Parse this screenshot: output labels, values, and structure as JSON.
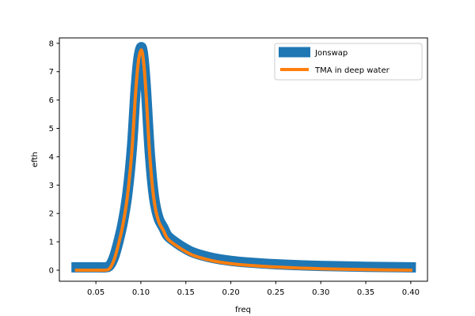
{
  "chart_data": {
    "type": "line",
    "title": "",
    "xlabel": "freq",
    "ylabel": "efth",
    "xlim": [
      0.0094,
      0.4186
    ],
    "ylim": [
      -0.39,
      8.19
    ],
    "xticks": [
      "0.05",
      "0.10",
      "0.15",
      "0.20",
      "0.25",
      "0.30",
      "0.35",
      "0.40"
    ],
    "yticks": [
      "0",
      "1",
      "2",
      "3",
      "4",
      "5",
      "6",
      "7",
      "8"
    ],
    "grid": false,
    "legend_position": "top-right",
    "series": [
      {
        "name": "Jonswap",
        "color": "#1f77b4",
        "x": [
          0.0285,
          0.05,
          0.055,
          0.06,
          0.065,
          0.07,
          0.075,
          0.08,
          0.085,
          0.09,
          0.094,
          0.097,
          0.1,
          0.102,
          0.104,
          0.106,
          0.108,
          0.11,
          0.113,
          0.116,
          0.12,
          0.125,
          0.13,
          0.14,
          0.15,
          0.16,
          0.18,
          0.2,
          0.22,
          0.25,
          0.3,
          0.35,
          0.4
        ],
        "y": [
          0.1,
          0.1,
          0.1,
          0.1,
          0.15,
          0.45,
          1.0,
          1.7,
          2.7,
          4.3,
          6.3,
          7.4,
          7.85,
          7.7,
          7.1,
          6.2,
          5.1,
          4.1,
          3.0,
          2.3,
          1.8,
          1.5,
          1.2,
          0.95,
          0.75,
          0.6,
          0.43,
          0.33,
          0.27,
          0.21,
          0.15,
          0.12,
          0.1
        ]
      },
      {
        "name": "TMA in deep water",
        "color": "#ff7f0e",
        "x": [
          0.0285,
          0.05,
          0.055,
          0.06,
          0.065,
          0.07,
          0.075,
          0.08,
          0.085,
          0.09,
          0.094,
          0.097,
          0.1,
          0.102,
          0.104,
          0.106,
          0.108,
          0.11,
          0.113,
          0.116,
          0.12,
          0.125,
          0.13,
          0.14,
          0.15,
          0.16,
          0.18,
          0.2,
          0.22,
          0.25,
          0.3,
          0.35,
          0.4
        ],
        "y": [
          0.0,
          0.0,
          0.0,
          0.0,
          0.05,
          0.35,
          0.9,
          1.6,
          2.6,
          4.2,
          6.2,
          7.3,
          7.75,
          7.6,
          7.0,
          6.1,
          5.0,
          4.0,
          2.9,
          2.2,
          1.7,
          1.4,
          1.1,
          0.85,
          0.65,
          0.5,
          0.33,
          0.23,
          0.17,
          0.11,
          0.05,
          0.02,
          0.0
        ]
      }
    ]
  }
}
